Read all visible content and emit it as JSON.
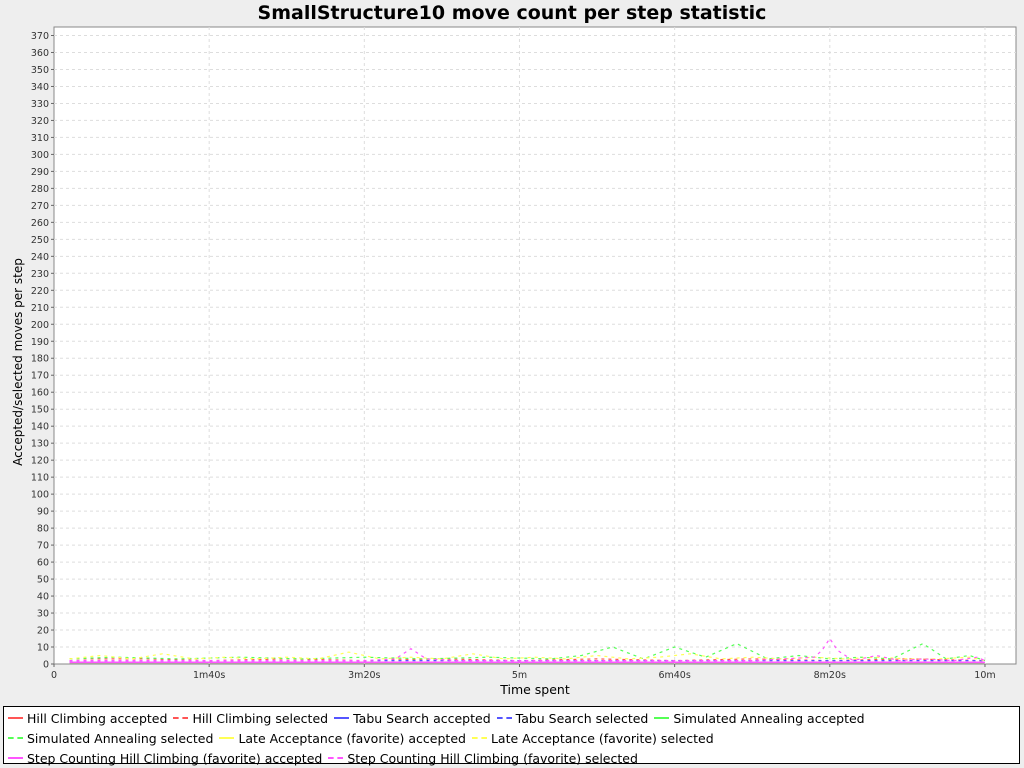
{
  "chart_data": {
    "type": "line",
    "title": "SmallStructure10 move count per step statistic",
    "xlabel": "Time spent",
    "ylabel": "Accepted/selected moves per step",
    "xlim_seconds": [
      0,
      620
    ],
    "ylim": [
      0,
      375
    ],
    "x_ticks": [
      {
        "value": 0,
        "label": "0"
      },
      {
        "value": 100,
        "label": "1m40s"
      },
      {
        "value": 200,
        "label": "3m20s"
      },
      {
        "value": 300,
        "label": "5m"
      },
      {
        "value": 400,
        "label": "6m40s"
      },
      {
        "value": 500,
        "label": "8m20s"
      },
      {
        "value": 600,
        "label": "10m"
      }
    ],
    "y_ticks": [
      0,
      10,
      20,
      30,
      40,
      50,
      60,
      70,
      80,
      90,
      100,
      110,
      120,
      130,
      140,
      150,
      160,
      170,
      180,
      190,
      200,
      210,
      220,
      230,
      240,
      250,
      260,
      270,
      280,
      290,
      300,
      310,
      320,
      330,
      340,
      350,
      360,
      370
    ],
    "grid": true,
    "legend_position": "bottom",
    "series": [
      {
        "name": "Hill Climbing accepted",
        "color": "#ff5555",
        "dash": false,
        "x": [
          10,
          100,
          200,
          300,
          400,
          500,
          600
        ],
        "y": [
          1,
          1,
          1,
          1,
          1,
          1,
          1
        ]
      },
      {
        "name": "Hill Climbing selected",
        "color": "#ff5555",
        "dash": true,
        "x": [
          10,
          60,
          100,
          150,
          200,
          250,
          300,
          350,
          400,
          450,
          500,
          550,
          600
        ],
        "y": [
          3,
          3,
          2,
          3,
          2,
          3,
          2,
          3,
          2,
          3,
          2,
          3,
          2
        ]
      },
      {
        "name": "Tabu Search accepted",
        "color": "#5555ff",
        "dash": false,
        "x": [
          10,
          100,
          200,
          300,
          400,
          500,
          600
        ],
        "y": [
          1,
          1,
          1,
          1,
          1,
          1,
          1
        ]
      },
      {
        "name": "Tabu Search selected",
        "color": "#5555ff",
        "dash": true,
        "x": [
          10,
          100,
          200,
          300,
          400,
          500,
          600
        ],
        "y": [
          2,
          2,
          2,
          2,
          2,
          2,
          2
        ]
      },
      {
        "name": "Simulated Annealing accepted",
        "color": "#55ff55",
        "dash": false,
        "x": [
          10,
          100,
          200,
          300,
          400,
          500,
          600
        ],
        "y": [
          1,
          1,
          1,
          1,
          1,
          1,
          1
        ]
      },
      {
        "name": "Simulated Annealing selected",
        "color": "#55ff55",
        "dash": true,
        "x": [
          10,
          40,
          80,
          120,
          160,
          200,
          240,
          280,
          320,
          340,
          360,
          380,
          400,
          420,
          440,
          460,
          480,
          500,
          520,
          540,
          560,
          575,
          590,
          600
        ],
        "y": [
          3,
          4,
          3,
          4,
          3,
          4,
          3,
          4,
          3,
          5,
          10,
          3,
          10,
          4,
          12,
          3,
          5,
          3,
          4,
          3,
          12,
          3,
          5,
          2
        ]
      },
      {
        "name": "Late Acceptance (favorite) accepted",
        "color": "#ffff55",
        "dash": false,
        "x": [
          10,
          100,
          200,
          300,
          400,
          500,
          600
        ],
        "y": [
          1,
          1,
          1,
          1,
          1,
          1,
          1
        ]
      },
      {
        "name": "Late Acceptance (favorite) selected",
        "color": "#ffff55",
        "dash": true,
        "x": [
          10,
          30,
          50,
          70,
          90,
          110,
          130,
          150,
          170,
          190,
          210,
          230,
          250,
          270,
          290,
          310,
          330,
          350,
          370,
          390,
          410,
          430,
          450,
          470,
          490,
          510,
          530,
          550,
          570,
          590,
          600
        ],
        "y": [
          3,
          5,
          3,
          6,
          3,
          4,
          3,
          4,
          3,
          7,
          3,
          4,
          3,
          6,
          3,
          4,
          3,
          5,
          3,
          4,
          6,
          3,
          4,
          3,
          4,
          3,
          4,
          3,
          3,
          4,
          2
        ]
      },
      {
        "name": "Step Counting Hill Climbing (favorite) accepted",
        "color": "#ff55ff",
        "dash": false,
        "x": [
          10,
          100,
          200,
          300,
          400,
          500,
          600
        ],
        "y": [
          1,
          1,
          1,
          1,
          1,
          1,
          1
        ]
      },
      {
        "name": "Step Counting Hill Climbing (favorite) selected",
        "color": "#ff55ff",
        "dash": true,
        "x": [
          10,
          100,
          200,
          220,
          230,
          240,
          260,
          300,
          350,
          400,
          450,
          470,
          490,
          495,
          500,
          505,
          515,
          530,
          545,
          560,
          580,
          595,
          600
        ],
        "y": [
          2,
          2,
          2,
          3,
          9,
          3,
          2,
          2,
          2,
          2,
          2,
          3,
          4,
          8,
          15,
          8,
          2,
          5,
          2,
          3,
          2,
          4,
          2
        ]
      }
    ]
  }
}
